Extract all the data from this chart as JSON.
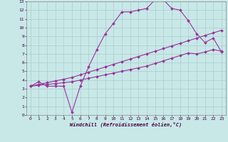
{
  "bg_color": "#c8e8e8",
  "line_color": "#993399",
  "grid_color": "#aacccc",
  "xlabel": "Windchill (Refroidissement éolien,°C)",
  "xlim": [
    -0.5,
    23.5
  ],
  "ylim": [
    0,
    13
  ],
  "xticks": [
    0,
    1,
    2,
    3,
    4,
    5,
    6,
    7,
    8,
    9,
    10,
    11,
    12,
    13,
    14,
    15,
    16,
    17,
    18,
    19,
    20,
    21,
    22,
    23
  ],
  "yticks": [
    0,
    1,
    2,
    3,
    4,
    5,
    6,
    7,
    8,
    9,
    10,
    11,
    12,
    13
  ],
  "series": [
    {
      "x": [
        0,
        1,
        2,
        3,
        4,
        5,
        6,
        7,
        8,
        9,
        10,
        11,
        12,
        13,
        14,
        15,
        16,
        17,
        18,
        19,
        20,
        21,
        22,
        23
      ],
      "y": [
        3.3,
        3.8,
        3.3,
        3.3,
        3.3,
        0.3,
        3.3,
        5.5,
        7.5,
        9.3,
        10.5,
        11.8,
        11.8,
        12.0,
        12.2,
        13.2,
        13.2,
        12.2,
        12.0,
        10.8,
        9.3,
        8.3,
        8.8,
        7.2
      ]
    },
    {
      "x": [
        0,
        1,
        2,
        3,
        4,
        5,
        6,
        7,
        8,
        9,
        10,
        11,
        12,
        13,
        14,
        15,
        16,
        17,
        18,
        19,
        20,
        21,
        22,
        23
      ],
      "y": [
        3.3,
        3.5,
        3.7,
        3.9,
        4.1,
        4.3,
        4.6,
        4.9,
        5.2,
        5.5,
        5.8,
        6.1,
        6.4,
        6.7,
        7.0,
        7.3,
        7.6,
        7.9,
        8.2,
        8.5,
        8.8,
        9.1,
        9.4,
        9.7
      ]
    },
    {
      "x": [
        0,
        1,
        2,
        3,
        4,
        5,
        6,
        7,
        8,
        9,
        10,
        11,
        12,
        13,
        14,
        15,
        16,
        17,
        18,
        19,
        20,
        21,
        22,
        23
      ],
      "y": [
        3.3,
        3.4,
        3.5,
        3.6,
        3.7,
        3.8,
        4.0,
        4.2,
        4.4,
        4.6,
        4.8,
        5.0,
        5.2,
        5.4,
        5.6,
        5.9,
        6.2,
        6.5,
        6.8,
        7.1,
        7.0,
        7.2,
        7.5,
        7.3
      ]
    }
  ]
}
